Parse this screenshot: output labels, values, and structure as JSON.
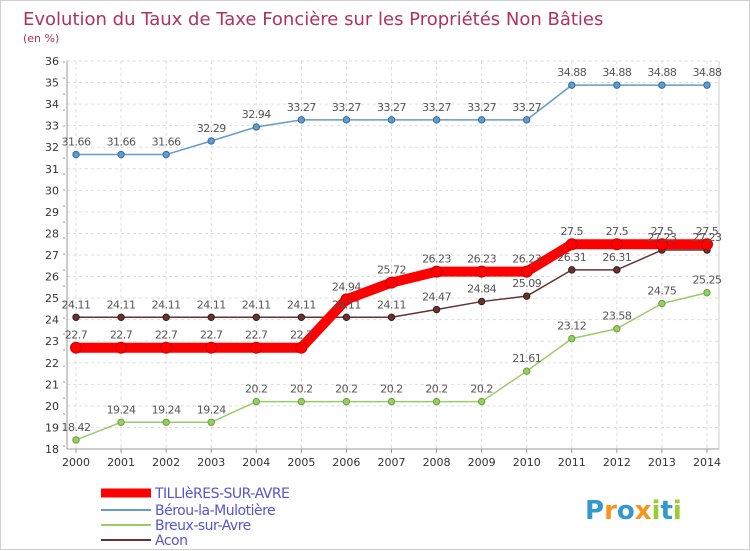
{
  "chart_data": {
    "type": "line",
    "title": "Evolution du Taux de Taxe Foncière sur les Propriétés Non Bâties",
    "subtitle": "(en %)",
    "xlabel": "",
    "ylabel": "",
    "x": [
      "2000",
      "2001",
      "2002",
      "2003",
      "2004",
      "2005",
      "2006",
      "2007",
      "2008",
      "2009",
      "2010",
      "2011",
      "2012",
      "2013",
      "2014"
    ],
    "ylim": [
      18,
      36
    ],
    "yticks": [
      18,
      19,
      20,
      21,
      22,
      23,
      24,
      25,
      26,
      27,
      28,
      29,
      30,
      31,
      32,
      33,
      34,
      35,
      36
    ],
    "grid": true,
    "legend_position": "bottom-left",
    "series": [
      {
        "name": "TILLIèRES-SUR-AVRE",
        "color": "#ff0000",
        "values": [
          22.7,
          22.7,
          22.7,
          22.7,
          22.7,
          22.7,
          24.94,
          25.72,
          26.23,
          26.23,
          26.23,
          27.5,
          27.5,
          27.5,
          27.5
        ],
        "labels": [
          "22.7",
          "22.7",
          "22.7",
          "22.7",
          "22.7",
          "22.7",
          "24.94",
          "25.72",
          "26.23",
          "26.23",
          "26.23",
          "27.5",
          "27.5",
          "27.5",
          "27.5"
        ]
      },
      {
        "name": "Bérou-la-Mulotière",
        "color": "#6699cc",
        "values": [
          31.66,
          31.66,
          31.66,
          32.29,
          32.94,
          33.27,
          33.27,
          33.27,
          33.27,
          33.27,
          33.27,
          34.88,
          34.88,
          34.88,
          34.88
        ],
        "labels": [
          "31.66",
          "31.66",
          "31.66",
          "32.29",
          "32.94",
          "33.27",
          "33.27",
          "33.27",
          "33.27",
          "33.27",
          "33.27",
          "34.88",
          "34.88",
          "34.88",
          "34.88"
        ]
      },
      {
        "name": "Breux-sur-Avre",
        "color": "#99cc66",
        "values": [
          18.42,
          19.24,
          19.24,
          19.24,
          20.2,
          20.2,
          20.2,
          20.2,
          20.2,
          20.2,
          21.61,
          23.12,
          23.58,
          24.75,
          25.25
        ],
        "labels": [
          "18.42",
          "19.24",
          "19.24",
          "19.24",
          "20.2",
          "20.2",
          "20.2",
          "20.2",
          "20.2",
          "20.2",
          "21.61",
          "23.12",
          "23.58",
          "24.75",
          "25.25"
        ]
      },
      {
        "name": "Acon",
        "color": "#663333",
        "values": [
          24.11,
          24.11,
          24.11,
          24.11,
          24.11,
          24.11,
          24.11,
          24.11,
          24.47,
          24.84,
          25.09,
          26.31,
          26.31,
          27.23,
          27.23
        ],
        "labels": [
          "24.11",
          "24.11",
          "24.11",
          "24.11",
          "24.11",
          "24.11",
          "24.11",
          "24.11",
          "24.47",
          "24.84",
          "25.09",
          "26.31",
          "26.31",
          "27.23",
          "27.23"
        ]
      }
    ]
  },
  "brand": {
    "letters": [
      "P",
      "r",
      "o",
      "x",
      "i",
      "t",
      "i"
    ],
    "colors": [
      "#3399cc",
      "#f7941d",
      "#3399cc",
      "#f7941d",
      "#99cc33",
      "#3399cc",
      "#99cc33"
    ]
  }
}
